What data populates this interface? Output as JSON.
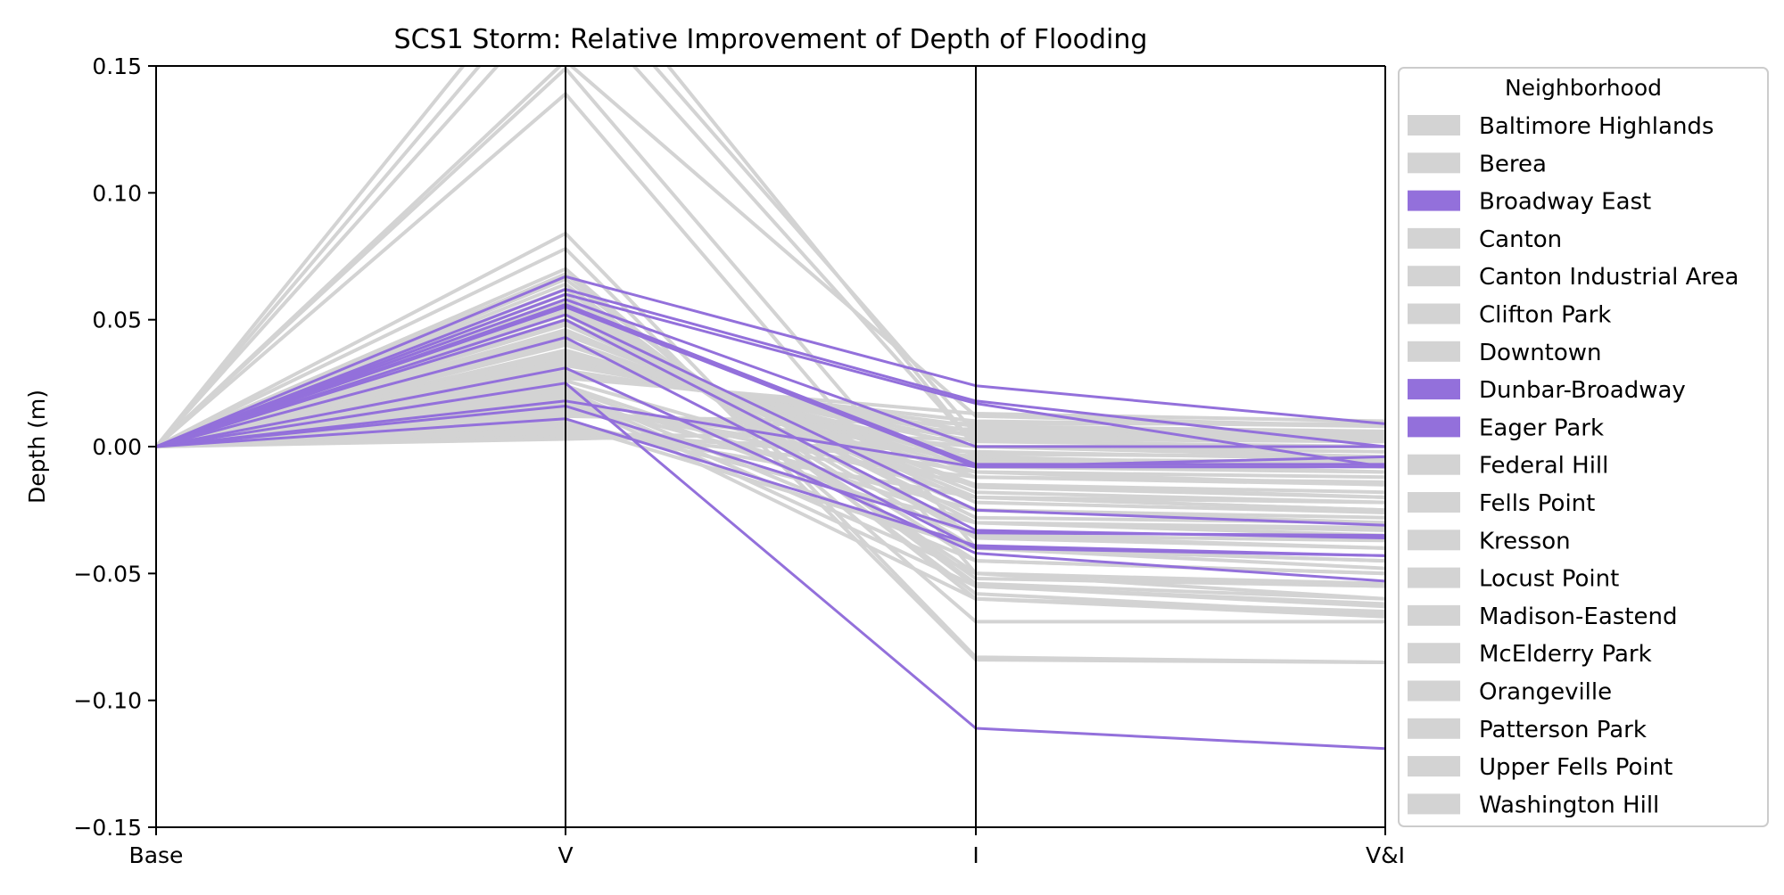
{
  "chart_data": {
    "type": "line",
    "title": "SCS1 Storm: Relative Improvement of Depth of Flooding",
    "xlabel": "",
    "ylabel": "Depth (m)",
    "categories": [
      "Base",
      "V",
      "I",
      "V&I"
    ],
    "ylim": [
      -0.15,
      0.15
    ],
    "yticks": [
      "0.15",
      "0.10",
      "0.05",
      "0.00",
      "−0.05",
      "−0.10",
      "−0.15"
    ],
    "grid": false,
    "legend": {
      "title": "Neighborhood",
      "placement": "outside-right",
      "entries": [
        {
          "name": "Baltimore Highlands",
          "highlight": false
        },
        {
          "name": "Berea",
          "highlight": false
        },
        {
          "name": "Broadway East",
          "highlight": true
        },
        {
          "name": "Canton",
          "highlight": false
        },
        {
          "name": "Canton Industrial Area",
          "highlight": false
        },
        {
          "name": "Clifton Park",
          "highlight": false
        },
        {
          "name": "Downtown",
          "highlight": false
        },
        {
          "name": "Dunbar-Broadway",
          "highlight": true
        },
        {
          "name": "Eager Park",
          "highlight": true
        },
        {
          "name": "Federal Hill",
          "highlight": false
        },
        {
          "name": "Fells Point",
          "highlight": false
        },
        {
          "name": "Kresson",
          "highlight": false
        },
        {
          "name": "Locust Point",
          "highlight": false
        },
        {
          "name": "Madison-Eastend",
          "highlight": false
        },
        {
          "name": "McElderry Park",
          "highlight": false
        },
        {
          "name": "Orangeville",
          "highlight": false
        },
        {
          "name": "Patterson Park",
          "highlight": false
        },
        {
          "name": "Upper Fells Point",
          "highlight": false
        },
        {
          "name": "Washington Hill",
          "highlight": false
        }
      ]
    },
    "colors": {
      "highlight": "#9370db",
      "other": "#d3d3d3",
      "axis": "#000000"
    },
    "series_highlight": [
      [
        0,
        0.067,
        0.024,
        0.009
      ],
      [
        0,
        0.062,
        0.018,
        0.0
      ],
      [
        0,
        0.06,
        0.017,
        -0.008
      ],
      [
        0,
        0.058,
        0.0,
        0.0
      ],
      [
        0,
        0.056,
        -0.007,
        -0.007
      ],
      [
        0,
        0.055,
        -0.008,
        -0.004
      ],
      [
        0,
        0.052,
        -0.025,
        -0.031
      ],
      [
        0,
        0.05,
        -0.033,
        -0.036
      ],
      [
        0,
        0.043,
        -0.04,
        -0.043
      ],
      [
        0,
        0.031,
        -0.042,
        -0.053
      ],
      [
        0,
        0.025,
        -0.111,
        -0.119
      ],
      [
        0,
        0.018,
        -0.008,
        -0.008
      ],
      [
        0,
        0.016,
        -0.034,
        -0.035
      ],
      [
        0,
        0.011,
        -0.039,
        -0.043
      ]
    ],
    "series_other": [
      [
        0,
        0.2,
        0.0,
        0.0
      ],
      [
        0,
        0.19,
        0.005,
        0.003
      ],
      [
        0,
        0.18,
        0.0,
        -0.002
      ],
      [
        0,
        0.152,
        0.012,
        0.008
      ],
      [
        0,
        0.149,
        -0.04,
        -0.045
      ],
      [
        0,
        0.139,
        -0.05,
        -0.055
      ],
      [
        0,
        0.084,
        -0.083,
        -0.085
      ],
      [
        0,
        0.078,
        -0.084,
        -0.085
      ],
      [
        0,
        0.07,
        -0.069,
        -0.069
      ],
      [
        0,
        0.068,
        -0.06,
        -0.065
      ],
      [
        0,
        0.066,
        -0.055,
        -0.062
      ],
      [
        0,
        0.064,
        -0.058,
        -0.066
      ],
      [
        0,
        0.062,
        -0.054,
        -0.06
      ],
      [
        0,
        0.06,
        -0.052,
        -0.055
      ],
      [
        0,
        0.058,
        -0.05,
        -0.054
      ],
      [
        0,
        0.057,
        -0.045,
        -0.05
      ],
      [
        0,
        0.055,
        -0.04,
        -0.048
      ],
      [
        0,
        0.054,
        -0.036,
        -0.04
      ],
      [
        0,
        0.053,
        -0.035,
        -0.037
      ],
      [
        0,
        0.052,
        -0.03,
        -0.033
      ],
      [
        0,
        0.05,
        -0.028,
        -0.03
      ],
      [
        0,
        0.049,
        -0.025,
        -0.028
      ],
      [
        0,
        0.048,
        -0.022,
        -0.026
      ],
      [
        0,
        0.046,
        -0.02,
        -0.025
      ],
      [
        0,
        0.045,
        -0.018,
        -0.022
      ],
      [
        0,
        0.044,
        -0.016,
        -0.02
      ],
      [
        0,
        0.042,
        -0.015,
        -0.018
      ],
      [
        0,
        0.041,
        -0.012,
        -0.015
      ],
      [
        0,
        0.04,
        -0.01,
        -0.012
      ],
      [
        0,
        0.038,
        -0.008,
        -0.01
      ],
      [
        0,
        0.037,
        -0.006,
        -0.008
      ],
      [
        0,
        0.036,
        -0.005,
        -0.006
      ],
      [
        0,
        0.035,
        -0.003,
        -0.004
      ],
      [
        0,
        0.034,
        0.0,
        -0.002
      ],
      [
        0,
        0.033,
        0.002,
        0.0
      ],
      [
        0,
        0.032,
        0.004,
        0.002
      ],
      [
        0,
        0.03,
        0.006,
        0.004
      ],
      [
        0,
        0.029,
        0.008,
        0.006
      ],
      [
        0,
        0.028,
        0.01,
        0.008
      ],
      [
        0,
        0.027,
        0.013,
        0.01
      ],
      [
        0,
        0.026,
        -0.02,
        -0.025
      ],
      [
        0,
        0.024,
        -0.03,
        -0.032
      ],
      [
        0,
        0.023,
        -0.035,
        -0.04
      ],
      [
        0,
        0.022,
        -0.045,
        -0.05
      ],
      [
        0,
        0.021,
        -0.05,
        -0.06
      ],
      [
        0,
        0.02,
        -0.055,
        -0.063
      ],
      [
        0,
        0.019,
        -0.06,
        -0.067
      ],
      [
        0,
        0.018,
        -0.025,
        -0.03
      ],
      [
        0,
        0.017,
        -0.015,
        -0.02
      ],
      [
        0,
        0.016,
        -0.01,
        -0.015
      ],
      [
        0,
        0.015,
        -0.004,
        -0.008
      ],
      [
        0,
        0.014,
        0.0,
        -0.004
      ],
      [
        0,
        0.013,
        0.005,
        0.004
      ],
      [
        0,
        0.012,
        0.009,
        0.009
      ],
      [
        0,
        0.01,
        -0.03,
        -0.035
      ],
      [
        0,
        0.009,
        -0.04,
        -0.045
      ],
      [
        0,
        0.008,
        -0.02,
        -0.022
      ],
      [
        0,
        0.007,
        -0.012,
        -0.014
      ],
      [
        0,
        0.006,
        -0.006,
        -0.01
      ],
      [
        0,
        0.005,
        0.003,
        0.002
      ],
      [
        0,
        0.004,
        -0.002,
        -0.005
      ],
      [
        0,
        0.003,
        0.007,
        0.005
      ]
    ]
  }
}
